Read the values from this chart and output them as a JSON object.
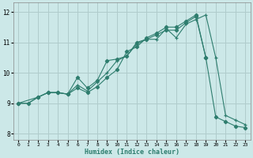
{
  "xlabel": "Humidex (Indice chaleur)",
  "bg_color": "#cce8e8",
  "grid_color": "#b8d8d8",
  "line_color": "#2e7d6e",
  "xlim": [
    -0.5,
    23.5
  ],
  "ylim": [
    7.8,
    12.3
  ],
  "x_ticks": [
    0,
    1,
    2,
    3,
    4,
    5,
    6,
    7,
    8,
    9,
    10,
    11,
    12,
    13,
    14,
    15,
    16,
    17,
    18,
    19,
    20,
    21,
    22,
    23
  ],
  "y_ticks": [
    8,
    9,
    10,
    11,
    12
  ],
  "series1_x": [
    0,
    1,
    2,
    3,
    4,
    5,
    6,
    7,
    8,
    9,
    10,
    11,
    12,
    13,
    14,
    15,
    16,
    17,
    18,
    19,
    20,
    21,
    22,
    23
  ],
  "series1_y": [
    9.0,
    9.0,
    9.2,
    9.35,
    9.35,
    9.3,
    9.6,
    9.4,
    9.7,
    10.0,
    10.4,
    10.55,
    10.95,
    11.1,
    11.1,
    11.45,
    11.15,
    11.6,
    11.75,
    11.9,
    10.5,
    8.6,
    8.45,
    8.3
  ],
  "series2_x": [
    0,
    1,
    2,
    3,
    4,
    5,
    6,
    7,
    8,
    9,
    10,
    11,
    12,
    13,
    14,
    15,
    16,
    17,
    18,
    19,
    20,
    21,
    22,
    23
  ],
  "series2_y": [
    9.0,
    9.0,
    9.2,
    9.35,
    9.35,
    9.3,
    9.5,
    9.35,
    9.55,
    9.85,
    10.1,
    10.7,
    10.85,
    11.15,
    11.3,
    11.5,
    11.5,
    11.7,
    11.9,
    10.5,
    8.55,
    8.4,
    8.25,
    8.2
  ],
  "series3_x": [
    0,
    2,
    3,
    4,
    5,
    6,
    7,
    8,
    9,
    10,
    11,
    12,
    13,
    14,
    15,
    16,
    17,
    18,
    19
  ],
  "series3_y": [
    9.0,
    9.2,
    9.35,
    9.35,
    9.3,
    9.85,
    9.5,
    9.75,
    10.4,
    10.45,
    10.55,
    11.0,
    11.1,
    11.25,
    11.4,
    11.4,
    11.65,
    11.85,
    10.5
  ]
}
